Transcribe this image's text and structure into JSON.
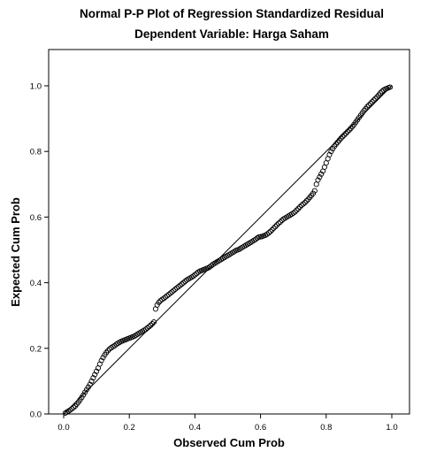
{
  "chart_data": {
    "type": "scatter",
    "title": "Normal P-P Plot of Regression Standardized Residual",
    "subtitle": "Dependent Variable: Harga Saham",
    "xlabel": "Observed Cum Prob",
    "ylabel": "Expected Cum Prob",
    "xlim": [
      0.0,
      1.0
    ],
    "ylim": [
      0.0,
      1.0
    ],
    "xticks": [
      "0.0",
      "0.2",
      "0.4",
      "0.6",
      "0.8",
      "1.0"
    ],
    "yticks": [
      "0.0",
      "0.2",
      "0.4",
      "0.6",
      "0.8",
      "1.0"
    ],
    "grid": false,
    "reference_line": {
      "from": [
        0.0,
        0.0
      ],
      "to": [
        1.0,
        1.0
      ]
    },
    "marker": "open-circle",
    "points": [
      [
        0.005,
        0.003
      ],
      [
        0.01,
        0.006
      ],
      [
        0.015,
        0.009
      ],
      [
        0.02,
        0.012
      ],
      [
        0.025,
        0.016
      ],
      [
        0.03,
        0.02
      ],
      [
        0.035,
        0.024
      ],
      [
        0.04,
        0.03
      ],
      [
        0.045,
        0.036
      ],
      [
        0.05,
        0.043
      ],
      [
        0.055,
        0.05
      ],
      [
        0.06,
        0.058
      ],
      [
        0.065,
        0.066
      ],
      [
        0.07,
        0.074
      ],
      [
        0.075,
        0.082
      ],
      [
        0.08,
        0.09
      ],
      [
        0.085,
        0.1
      ],
      [
        0.09,
        0.11
      ],
      [
        0.095,
        0.12
      ],
      [
        0.1,
        0.13
      ],
      [
        0.105,
        0.14
      ],
      [
        0.11,
        0.152
      ],
      [
        0.115,
        0.163
      ],
      [
        0.12,
        0.172
      ],
      [
        0.125,
        0.18
      ],
      [
        0.13,
        0.187
      ],
      [
        0.135,
        0.193
      ],
      [
        0.14,
        0.198
      ],
      [
        0.145,
        0.202
      ],
      [
        0.15,
        0.205
      ],
      [
        0.155,
        0.208
      ],
      [
        0.16,
        0.212
      ],
      [
        0.165,
        0.215
      ],
      [
        0.17,
        0.218
      ],
      [
        0.175,
        0.221
      ],
      [
        0.18,
        0.223
      ],
      [
        0.185,
        0.225
      ],
      [
        0.19,
        0.227
      ],
      [
        0.195,
        0.229
      ],
      [
        0.2,
        0.231
      ],
      [
        0.205,
        0.233
      ],
      [
        0.21,
        0.235
      ],
      [
        0.215,
        0.237
      ],
      [
        0.22,
        0.24
      ],
      [
        0.225,
        0.243
      ],
      [
        0.23,
        0.246
      ],
      [
        0.235,
        0.249
      ],
      [
        0.24,
        0.252
      ],
      [
        0.245,
        0.255
      ],
      [
        0.25,
        0.258
      ],
      [
        0.255,
        0.262
      ],
      [
        0.26,
        0.266
      ],
      [
        0.265,
        0.27
      ],
      [
        0.27,
        0.275
      ],
      [
        0.275,
        0.28
      ],
      [
        0.28,
        0.32
      ],
      [
        0.285,
        0.332
      ],
      [
        0.29,
        0.34
      ],
      [
        0.295,
        0.345
      ],
      [
        0.3,
        0.349
      ],
      [
        0.305,
        0.352
      ],
      [
        0.31,
        0.356
      ],
      [
        0.315,
        0.36
      ],
      [
        0.32,
        0.364
      ],
      [
        0.325,
        0.368
      ],
      [
        0.33,
        0.372
      ],
      [
        0.335,
        0.376
      ],
      [
        0.34,
        0.38
      ],
      [
        0.345,
        0.384
      ],
      [
        0.35,
        0.388
      ],
      [
        0.355,
        0.392
      ],
      [
        0.36,
        0.396
      ],
      [
        0.365,
        0.4
      ],
      [
        0.37,
        0.404
      ],
      [
        0.375,
        0.408
      ],
      [
        0.38,
        0.411
      ],
      [
        0.385,
        0.414
      ],
      [
        0.39,
        0.417
      ],
      [
        0.395,
        0.42
      ],
      [
        0.4,
        0.424
      ],
      [
        0.405,
        0.428
      ],
      [
        0.41,
        0.432
      ],
      [
        0.415,
        0.435
      ],
      [
        0.42,
        0.437
      ],
      [
        0.425,
        0.439
      ],
      [
        0.43,
        0.441
      ],
      [
        0.435,
        0.443
      ],
      [
        0.44,
        0.445
      ],
      [
        0.445,
        0.448
      ],
      [
        0.45,
        0.452
      ],
      [
        0.455,
        0.456
      ],
      [
        0.46,
        0.459
      ],
      [
        0.465,
        0.462
      ],
      [
        0.47,
        0.465
      ],
      [
        0.475,
        0.468
      ],
      [
        0.48,
        0.471
      ],
      [
        0.485,
        0.474
      ],
      [
        0.49,
        0.477
      ],
      [
        0.495,
        0.48
      ],
      [
        0.5,
        0.483
      ],
      [
        0.505,
        0.486
      ],
      [
        0.51,
        0.489
      ],
      [
        0.515,
        0.492
      ],
      [
        0.52,
        0.495
      ],
      [
        0.525,
        0.498
      ],
      [
        0.53,
        0.5
      ],
      [
        0.535,
        0.502
      ],
      [
        0.54,
        0.505
      ],
      [
        0.545,
        0.508
      ],
      [
        0.55,
        0.511
      ],
      [
        0.555,
        0.514
      ],
      [
        0.56,
        0.517
      ],
      [
        0.565,
        0.52
      ],
      [
        0.57,
        0.523
      ],
      [
        0.575,
        0.526
      ],
      [
        0.58,
        0.529
      ],
      [
        0.585,
        0.532
      ],
      [
        0.59,
        0.536
      ],
      [
        0.595,
        0.539
      ],
      [
        0.6,
        0.54
      ],
      [
        0.605,
        0.541
      ],
      [
        0.61,
        0.543
      ],
      [
        0.615,
        0.545
      ],
      [
        0.62,
        0.548
      ],
      [
        0.625,
        0.552
      ],
      [
        0.63,
        0.556
      ],
      [
        0.635,
        0.561
      ],
      [
        0.64,
        0.566
      ],
      [
        0.645,
        0.571
      ],
      [
        0.65,
        0.576
      ],
      [
        0.655,
        0.581
      ],
      [
        0.66,
        0.585
      ],
      [
        0.665,
        0.59
      ],
      [
        0.67,
        0.594
      ],
      [
        0.675,
        0.597
      ],
      [
        0.68,
        0.6
      ],
      [
        0.685,
        0.603
      ],
      [
        0.69,
        0.606
      ],
      [
        0.695,
        0.609
      ],
      [
        0.7,
        0.612
      ],
      [
        0.705,
        0.616
      ],
      [
        0.71,
        0.621
      ],
      [
        0.715,
        0.626
      ],
      [
        0.72,
        0.631
      ],
      [
        0.725,
        0.636
      ],
      [
        0.73,
        0.64
      ],
      [
        0.735,
        0.644
      ],
      [
        0.74,
        0.649
      ],
      [
        0.745,
        0.654
      ],
      [
        0.75,
        0.66
      ],
      [
        0.755,
        0.666
      ],
      [
        0.76,
        0.672
      ],
      [
        0.765,
        0.68
      ],
      [
        0.77,
        0.7
      ],
      [
        0.775,
        0.713
      ],
      [
        0.78,
        0.722
      ],
      [
        0.785,
        0.731
      ],
      [
        0.79,
        0.74
      ],
      [
        0.795,
        0.752
      ],
      [
        0.8,
        0.765
      ],
      [
        0.805,
        0.778
      ],
      [
        0.81,
        0.79
      ],
      [
        0.815,
        0.8
      ],
      [
        0.82,
        0.808
      ],
      [
        0.825,
        0.816
      ],
      [
        0.83,
        0.822
      ],
      [
        0.835,
        0.828
      ],
      [
        0.84,
        0.834
      ],
      [
        0.845,
        0.84
      ],
      [
        0.85,
        0.845
      ],
      [
        0.855,
        0.85
      ],
      [
        0.86,
        0.855
      ],
      [
        0.865,
        0.86
      ],
      [
        0.87,
        0.865
      ],
      [
        0.875,
        0.87
      ],
      [
        0.88,
        0.876
      ],
      [
        0.885,
        0.882
      ],
      [
        0.89,
        0.889
      ],
      [
        0.895,
        0.896
      ],
      [
        0.9,
        0.903
      ],
      [
        0.905,
        0.91
      ],
      [
        0.91,
        0.917
      ],
      [
        0.915,
        0.924
      ],
      [
        0.92,
        0.93
      ],
      [
        0.925,
        0.936
      ],
      [
        0.93,
        0.941
      ],
      [
        0.935,
        0.946
      ],
      [
        0.94,
        0.951
      ],
      [
        0.945,
        0.956
      ],
      [
        0.95,
        0.961
      ],
      [
        0.955,
        0.966
      ],
      [
        0.96,
        0.972
      ],
      [
        0.965,
        0.978
      ],
      [
        0.97,
        0.983
      ],
      [
        0.975,
        0.987
      ],
      [
        0.98,
        0.99
      ],
      [
        0.985,
        0.992
      ],
      [
        0.99,
        0.994
      ],
      [
        0.995,
        0.996
      ]
    ]
  }
}
